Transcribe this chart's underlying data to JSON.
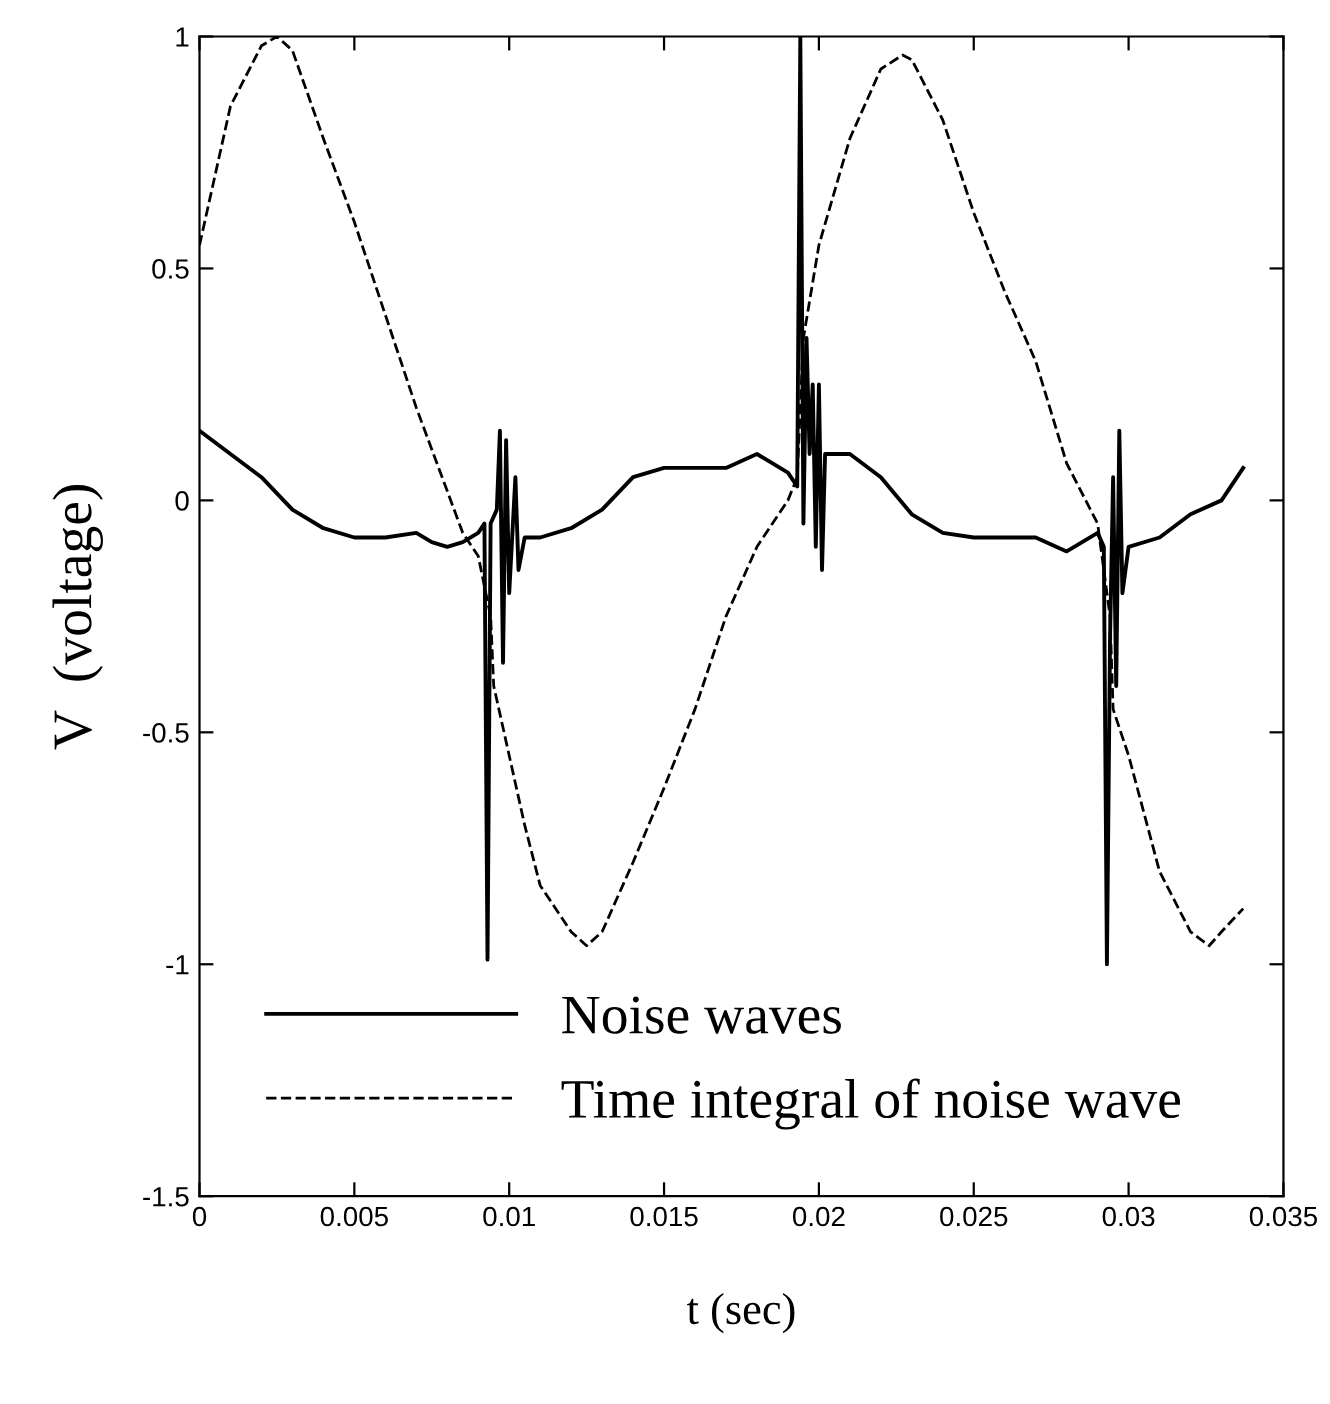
{
  "chart_data": {
    "type": "line",
    "xlabel": "t (sec)",
    "ylabel": "V  (voltage)",
    "xlim": [
      0,
      0.035
    ],
    "ylim": [
      -1.5,
      1
    ],
    "xticks": [
      0,
      0.005,
      0.01,
      0.015,
      0.02,
      0.025,
      0.03,
      0.035
    ],
    "yticks": [
      -1.5,
      -1,
      -0.5,
      0,
      0.5,
      1
    ],
    "grid": false,
    "legend": "bottom left",
    "marker": "none",
    "series": [
      {
        "name": "Noise waves",
        "color": "#000000",
        "line_style": "solid",
        "x": [
          0,
          0.001,
          0.002,
          0.003,
          0.004,
          0.005,
          0.006,
          0.007,
          0.0075,
          0.008,
          0.0085,
          0.009,
          0.0092,
          0.0093,
          0.0094,
          0.0096,
          0.0097,
          0.0098,
          0.0099,
          0.01,
          0.0102,
          0.0103,
          0.0105,
          0.011,
          0.012,
          0.013,
          0.014,
          0.015,
          0.016,
          0.017,
          0.018,
          0.019,
          0.0193,
          0.0194,
          0.0195,
          0.0196,
          0.0197,
          0.0198,
          0.0199,
          0.02,
          0.0201,
          0.0202,
          0.021,
          0.022,
          0.023,
          0.024,
          0.025,
          0.026,
          0.027,
          0.028,
          0.029,
          0.0292,
          0.0293,
          0.0294,
          0.0295,
          0.0296,
          0.0297,
          0.0298,
          0.03,
          0.031,
          0.032,
          0.033,
          0.0337
        ],
        "values": [
          0.15,
          0.1,
          0.05,
          -0.02,
          -0.06,
          -0.08,
          -0.08,
          -0.07,
          -0.09,
          -0.1,
          -0.09,
          -0.07,
          -0.05,
          -0.99,
          -0.05,
          -0.02,
          0.15,
          -0.35,
          0.13,
          -0.2,
          0.05,
          -0.15,
          -0.08,
          -0.08,
          -0.06,
          -0.02,
          0.05,
          0.07,
          0.07,
          0.07,
          0.1,
          0.06,
          0.03,
          1.0,
          -0.05,
          0.35,
          0.1,
          0.25,
          -0.1,
          0.25,
          -0.15,
          0.1,
          0.1,
          0.05,
          -0.03,
          -0.07,
          -0.08,
          -0.08,
          -0.08,
          -0.11,
          -0.07,
          -0.1,
          -1.0,
          -0.3,
          0.05,
          -0.4,
          0.15,
          -0.2,
          -0.1,
          -0.08,
          -0.03,
          0.0,
          0.07
        ]
      },
      {
        "name": "Time integral of noise wave",
        "color": "#000000",
        "line_style": "dashed",
        "x": [
          0,
          0.001,
          0.002,
          0.0025,
          0.003,
          0.004,
          0.005,
          0.006,
          0.007,
          0.008,
          0.0085,
          0.009,
          0.0094,
          0.0095,
          0.0099,
          0.0105,
          0.011,
          0.012,
          0.0125,
          0.013,
          0.014,
          0.015,
          0.016,
          0.017,
          0.018,
          0.019,
          0.0193,
          0.0195,
          0.02,
          0.021,
          0.022,
          0.0227,
          0.023,
          0.024,
          0.025,
          0.026,
          0.027,
          0.028,
          0.029,
          0.0294,
          0.0295,
          0.03,
          0.031,
          0.032,
          0.0326,
          0.033,
          0.0337
        ],
        "values": [
          0.55,
          0.85,
          0.98,
          1.0,
          0.97,
          0.78,
          0.6,
          0.4,
          0.2,
          0.02,
          -0.07,
          -0.12,
          -0.25,
          -0.4,
          -0.52,
          -0.7,
          -0.83,
          -0.93,
          -0.96,
          -0.93,
          -0.78,
          -0.62,
          -0.45,
          -0.25,
          -0.1,
          0.0,
          0.05,
          0.35,
          0.55,
          0.78,
          0.93,
          0.96,
          0.95,
          0.82,
          0.62,
          0.45,
          0.3,
          0.08,
          -0.05,
          -0.25,
          -0.45,
          -0.55,
          -0.8,
          -0.93,
          -0.96,
          -0.93,
          -0.88
        ]
      }
    ]
  }
}
